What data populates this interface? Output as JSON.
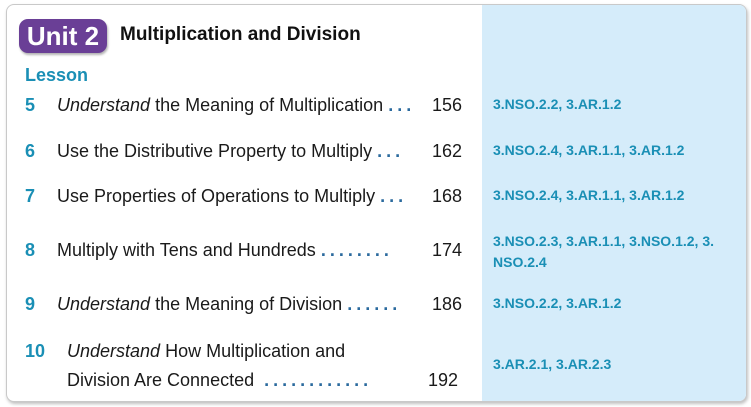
{
  "unit": {
    "badge": "Unit 2",
    "title": "Multiplication and Division"
  },
  "lesson_header": "Lesson",
  "lessons": [
    {
      "number": "5",
      "title_italic": "Understand",
      "title_rest": " the Meaning of Multiplication",
      "dots": "...",
      "page": "156",
      "standards": "3.NSO.2.2, 3.AR.1.2"
    },
    {
      "number": "6",
      "title_italic": "",
      "title_rest": "Use the Distributive Property to Multiply",
      "dots": "...",
      "page": "162",
      "standards": "3.NSO.2.4, 3.AR.1.1, 3.AR.1.2"
    },
    {
      "number": "7",
      "title_italic": "",
      "title_rest": "Use Properties of Operations to Multiply",
      "dots": "...",
      "page": "168",
      "standards": "3.NSO.2.4, 3.AR.1.1, 3.AR.1.2"
    },
    {
      "number": "8",
      "title_italic": "",
      "title_rest": "Multiply with Tens and Hundreds",
      "dots": "........",
      "page": "174",
      "standards": "3.NSO.2.3, 3.AR.1.1, 3.NSO.1.2, 3. NSO.2.4"
    },
    {
      "number": "9",
      "title_italic": "Understand",
      "title_rest": " the Meaning of Division",
      "dots": "......",
      "page": "186",
      "standards": "3.NSO.2.2, 3.AR.1.2"
    },
    {
      "number": "10",
      "title_italic": "Understand",
      "title_rest": " How Multiplication and",
      "title_line2": "Division Are Connected",
      "dots": "............",
      "page": "192",
      "standards": "3.AR.2.1, 3.AR.2.3"
    }
  ]
}
